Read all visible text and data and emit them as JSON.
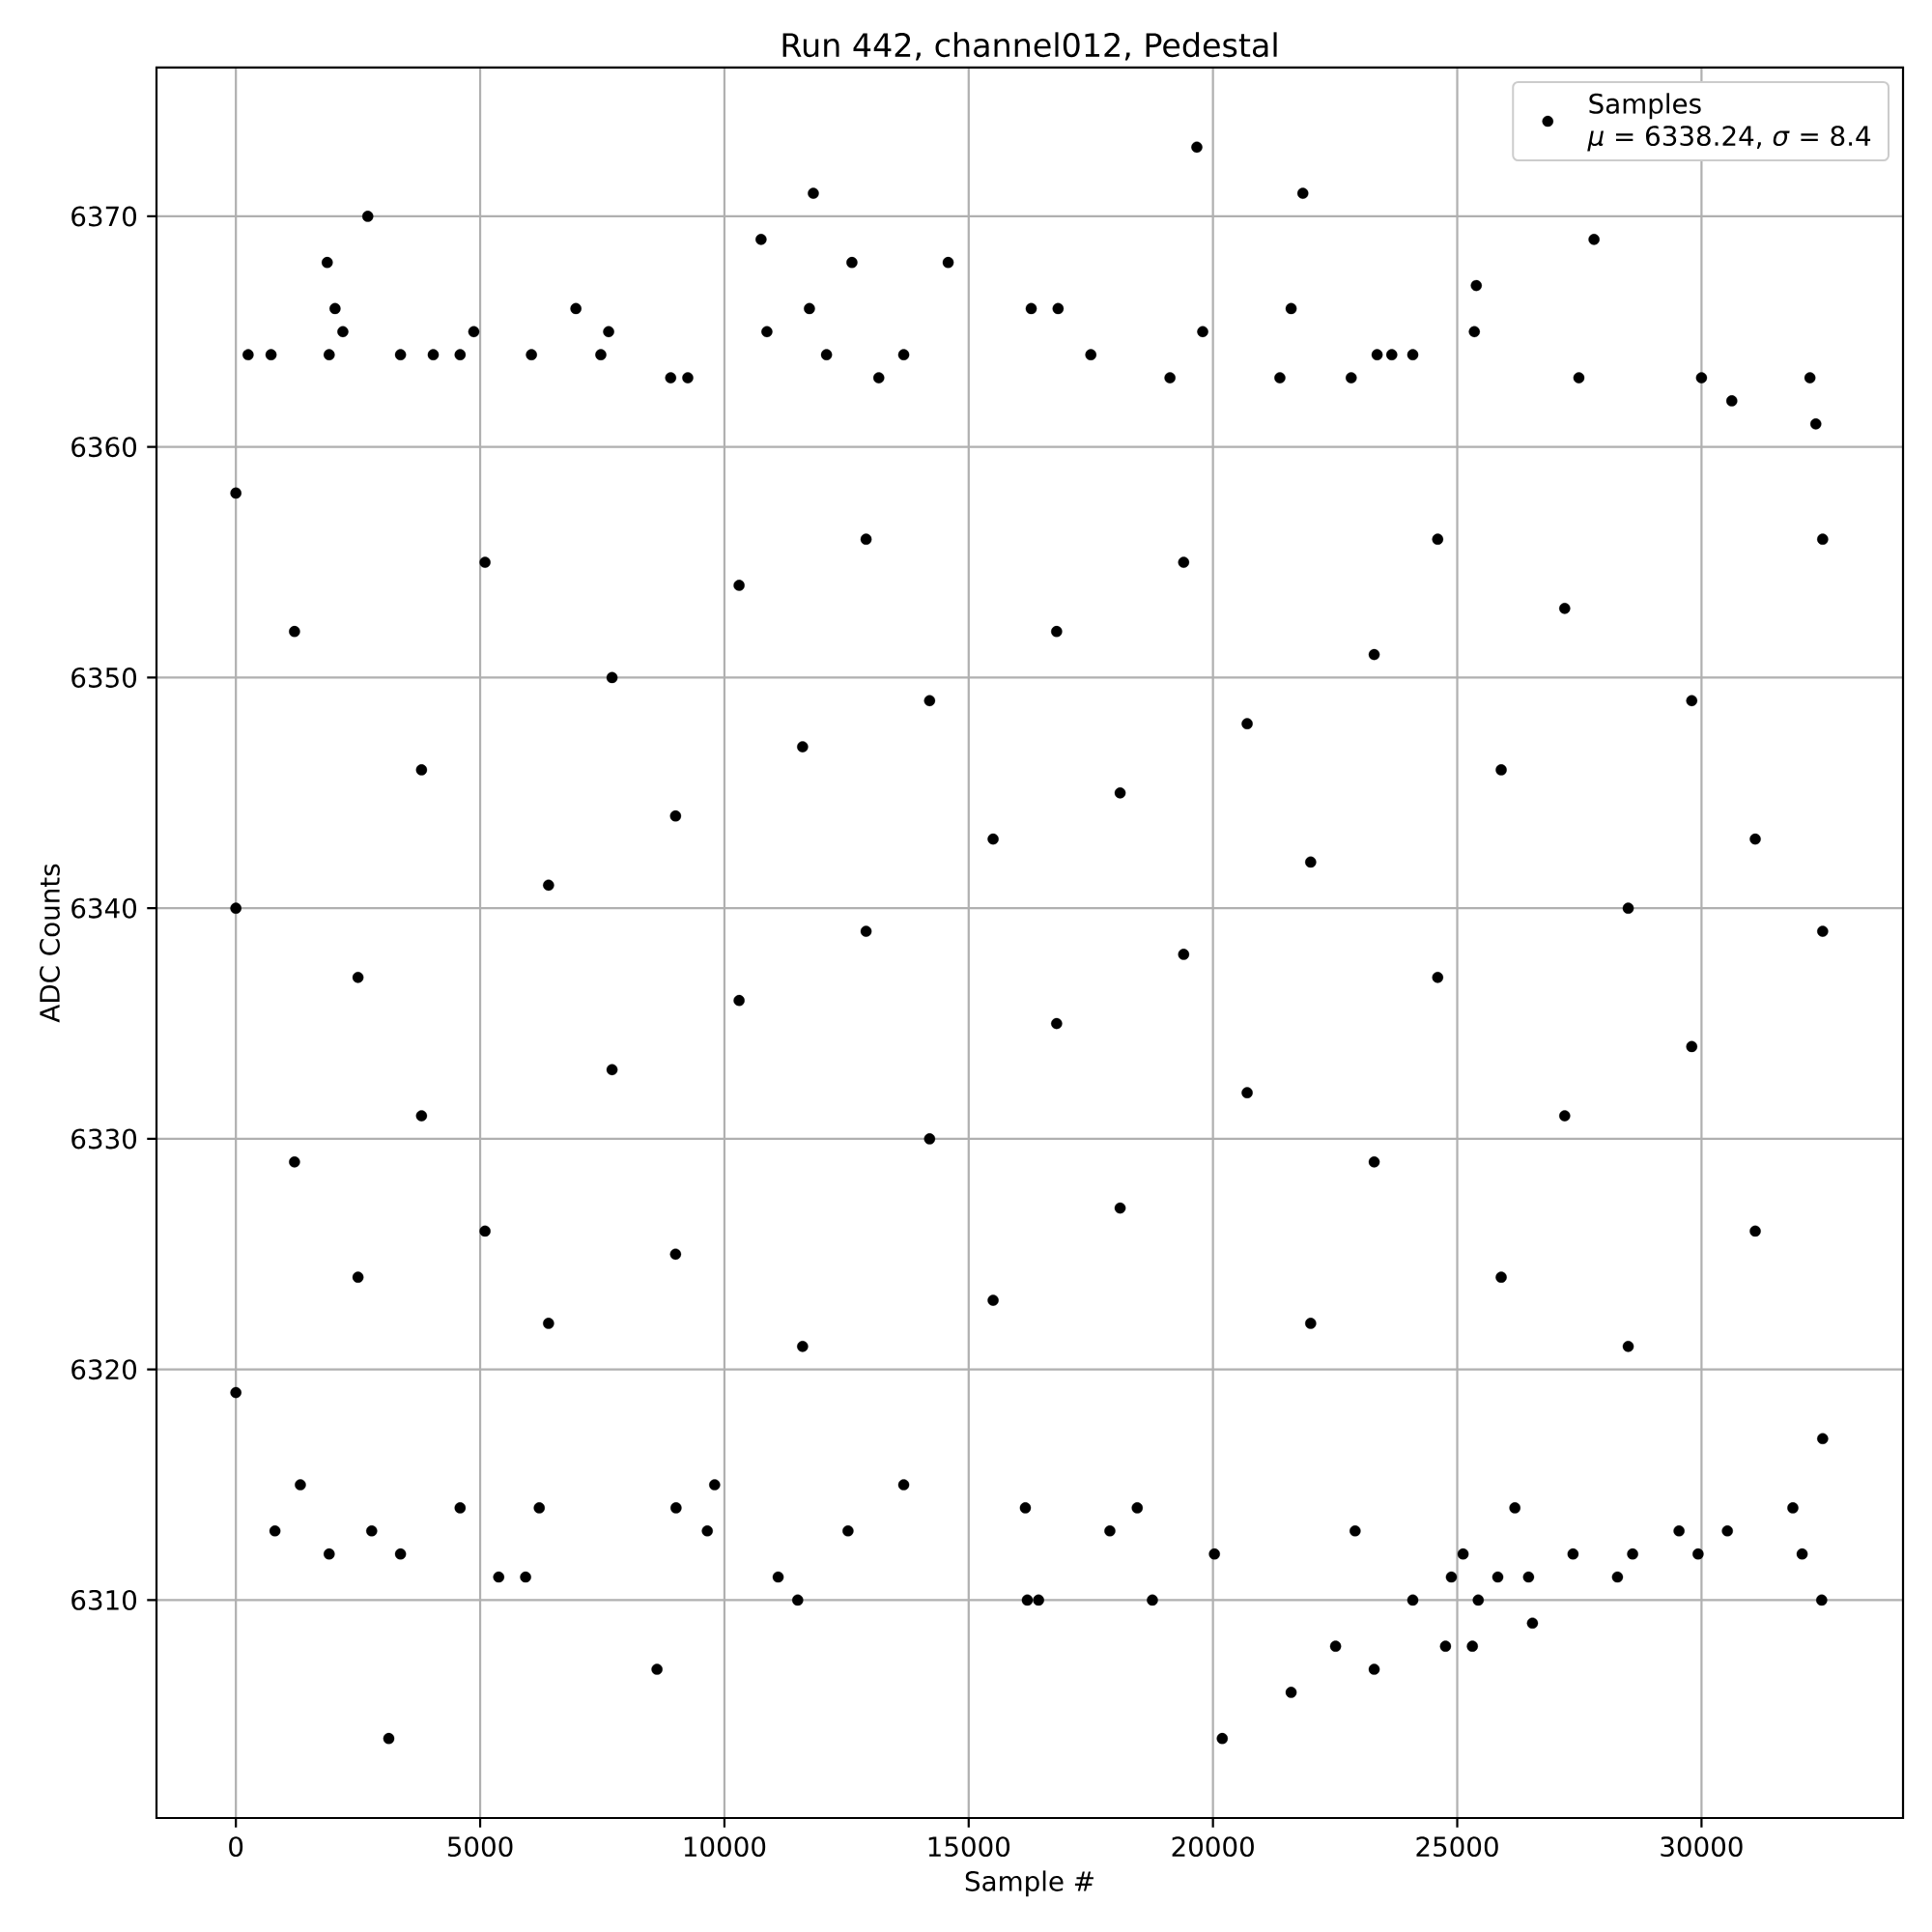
{
  "chart_data": {
    "type": "scatter",
    "title": "Run 442, channel012, Pedestal",
    "xlabel": "Sample #",
    "ylabel": "ADC Counts",
    "series": [
      {
        "name": "Samples\n*μ* = 6338.24, *σ* = 8.4",
        "color": "#000000",
        "x": [
          2700,
          11820,
          10750,
          1870,
          12610,
          14580,
          2030,
          6960,
          11740,
          16280,
          16830,
          21600,
          2190,
          4870,
          7630,
          10870,
          19790,
          25350,
          19670,
          21840,
          27800,
          25390,
          250,
          720,
          1910,
          3370,
          4040,
          4590,
          6050,
          7470,
          12090,
          13670,
          17500,
          23360,
          23660,
          24090,
          8900,
          9250,
          13160,
          19120,
          21370,
          22830,
          27490,
          30000,
          32220,
          30620,
          32340,
          3130,
          20190,
          8620,
          21600,
          23300,
          22510,
          24760,
          25310,
          26540,
          11500,
          16200,
          16430,
          18760,
          24090,
          25430,
          32460,
          5380,
          5930,
          11100,
          24880,
          25830,
          26460,
          28280,
          1910,
          3370,
          20030,
          25120,
          27370,
          28590,
          29930,
          32060,
          800,
          2780,
          9650,
          12530,
          17890,
          22910,
          29540,
          30530,
          4590,
          6210,
          9010,
          16160,
          18450,
          26180,
          31870,
          1320,
          9800,
          13670,
          0,
          0,
          0,
          1200,
          1200,
          2500,
          2500,
          3800,
          3800,
          5100,
          5100,
          6400,
          6400,
          7700,
          7700,
          9000,
          9000,
          10300,
          10300,
          11600,
          11600,
          12900,
          12900,
          14200,
          14200,
          15500,
          15500,
          16800,
          16800,
          18100,
          18100,
          19400,
          19400,
          20700,
          20700,
          22000,
          22000,
          23300,
          23300,
          24600,
          24600,
          25900,
          25900,
          27200,
          27200,
          28500,
          28500,
          29800,
          29800,
          31100,
          31100,
          32480,
          32480,
          32480
        ],
        "values": [
          6370,
          6371,
          6369,
          6368,
          6368,
          6368,
          6366,
          6366,
          6366,
          6366,
          6366,
          6366,
          6365,
          6365,
          6365,
          6365,
          6365,
          6365,
          6373,
          6371,
          6369,
          6367,
          6364,
          6364,
          6364,
          6364,
          6364,
          6364,
          6364,
          6364,
          6364,
          6364,
          6364,
          6364,
          6364,
          6364,
          6363,
          6363,
          6363,
          6363,
          6363,
          6363,
          6363,
          6363,
          6363,
          6362,
          6361,
          6304,
          6304,
          6307,
          6306,
          6307,
          6308,
          6308,
          6308,
          6309,
          6310,
          6310,
          6310,
          6310,
          6310,
          6310,
          6310,
          6311,
          6311,
          6311,
          6311,
          6311,
          6311,
          6311,
          6312,
          6312,
          6312,
          6312,
          6312,
          6312,
          6312,
          6312,
          6313,
          6313,
          6313,
          6313,
          6313,
          6313,
          6313,
          6313,
          6314,
          6314,
          6314,
          6314,
          6314,
          6314,
          6314,
          6315,
          6315,
          6315,
          6358,
          6340,
          6319,
          6329,
          6352,
          6337,
          6324,
          6346,
          6331,
          6355,
          6326,
          6341,
          6322,
          6350,
          6333,
          6344,
          6325,
          6354,
          6336,
          6347,
          6321,
          6339,
          6356,
          6330,
          6349,
          6343,
          6323,
          6352,
          6335,
          6345,
          6327,
          6355,
          6338,
          6332,
          6348,
          6342,
          6322,
          6351,
          6329,
          6337,
          6356,
          6346,
          6324,
          6353,
          6331,
          6340,
          6321,
          6349,
          6334,
          6343,
          6326,
          6356,
          6339,
          6317
        ]
      }
    ],
    "xlim": [
      -1625,
      34125
    ],
    "ylim": [
      6300.55,
      6376.45
    ],
    "xticks": [
      0,
      5000,
      10000,
      15000,
      20000,
      25000,
      30000
    ],
    "yticks": [
      6310,
      6320,
      6330,
      6340,
      6350,
      6360,
      6370
    ],
    "grid": true,
    "legend": "top right",
    "marker": "circle"
  }
}
